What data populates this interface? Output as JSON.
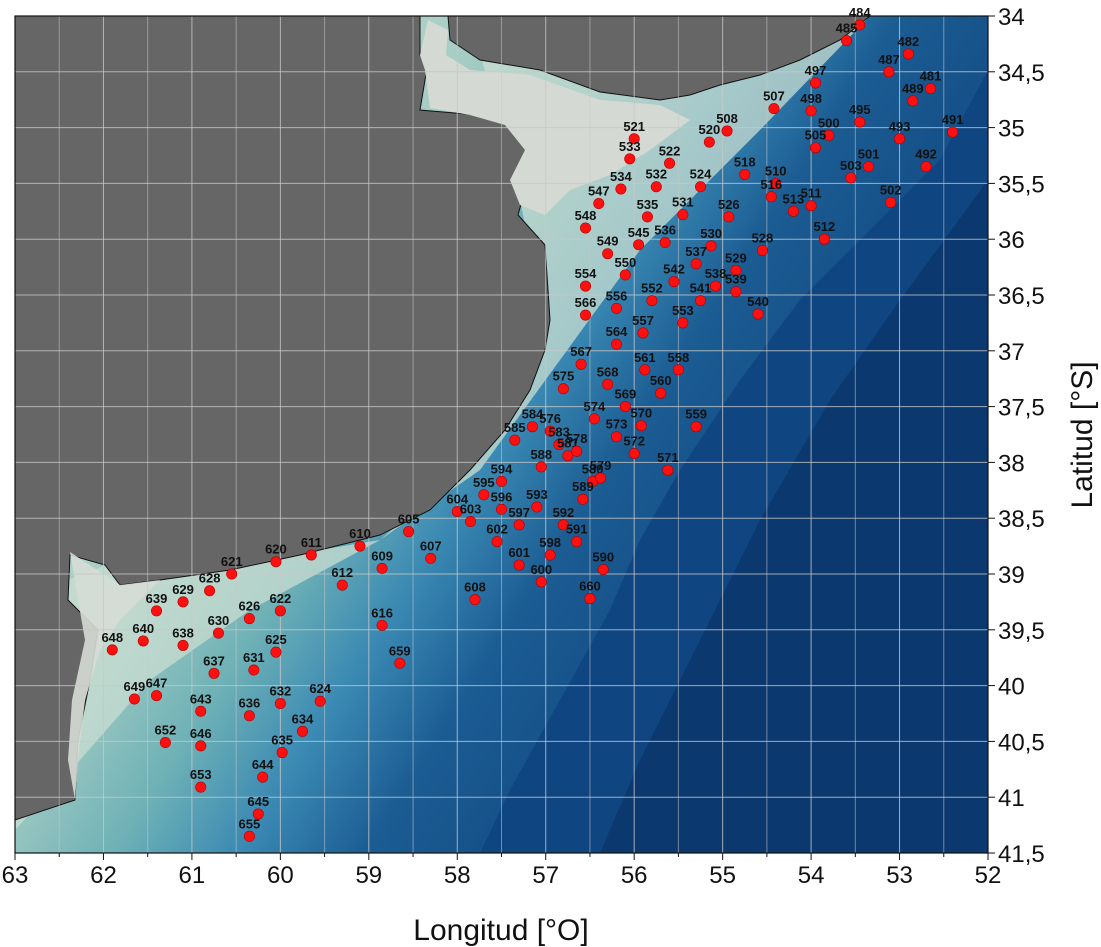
{
  "title": "",
  "x_axis": {
    "title": "Longitud [°O]",
    "ticks": [
      "63",
      "62",
      "61",
      "60",
      "59",
      "58",
      "57",
      "56",
      "55",
      "54",
      "53",
      "52"
    ],
    "range": [
      63,
      52
    ]
  },
  "y_axis": {
    "title": "Latitud [°S]",
    "ticks": [
      "34",
      "34,5",
      "35",
      "35,5",
      "36",
      "36,5",
      "37",
      "37,5",
      "38",
      "38,5",
      "39",
      "39,5",
      "40",
      "40,5",
      "41",
      "41,5"
    ],
    "range": [
      34,
      41.5
    ]
  },
  "colors": {
    "land": "#666666",
    "coast_plain": "#cfd6d2",
    "shelf_light": "#b7d5cc",
    "shelf": "#7ab6b8",
    "slope": "#2f79a8",
    "deep": "#0d3f78",
    "station": "#ff1010",
    "grid": "#c8c8c8"
  },
  "stations": [
    {
      "id": "484",
      "lon": 53.45,
      "lat": 34.08
    },
    {
      "id": "485",
      "lon": 53.6,
      "lat": 34.22
    },
    {
      "id": "482",
      "lon": 52.9,
      "lat": 34.34
    },
    {
      "id": "487",
      "lon": 53.12,
      "lat": 34.5
    },
    {
      "id": "481",
      "lon": 52.65,
      "lat": 34.65
    },
    {
      "id": "497",
      "lon": 53.95,
      "lat": 34.6
    },
    {
      "id": "489",
      "lon": 52.85,
      "lat": 34.76
    },
    {
      "id": "507",
      "lon": 54.42,
      "lat": 34.83
    },
    {
      "id": "498",
      "lon": 54.0,
      "lat": 34.85
    },
    {
      "id": "495",
      "lon": 53.45,
      "lat": 34.95
    },
    {
      "id": "491",
      "lon": 52.4,
      "lat": 35.04
    },
    {
      "id": "508",
      "lon": 54.95,
      "lat": 35.03
    },
    {
      "id": "500",
      "lon": 53.8,
      "lat": 35.07
    },
    {
      "id": "493",
      "lon": 53.0,
      "lat": 35.1
    },
    {
      "id": "521",
      "lon": 56.0,
      "lat": 35.1
    },
    {
      "id": "520",
      "lon": 55.15,
      "lat": 35.13
    },
    {
      "id": "505",
      "lon": 53.95,
      "lat": 35.18
    },
    {
      "id": "533",
      "lon": 56.05,
      "lat": 35.28
    },
    {
      "id": "522",
      "lon": 55.6,
      "lat": 35.32
    },
    {
      "id": "501",
      "lon": 53.35,
      "lat": 35.35
    },
    {
      "id": "492",
      "lon": 52.7,
      "lat": 35.35
    },
    {
      "id": "518",
      "lon": 54.75,
      "lat": 35.42
    },
    {
      "id": "503",
      "lon": 53.55,
      "lat": 35.45
    },
    {
      "id": "510",
      "lon": 54.4,
      "lat": 35.5
    },
    {
      "id": "534",
      "lon": 56.15,
      "lat": 35.55
    },
    {
      "id": "532",
      "lon": 55.75,
      "lat": 35.53
    },
    {
      "id": "524",
      "lon": 55.25,
      "lat": 35.53
    },
    {
      "id": "516",
      "lon": 54.45,
      "lat": 35.62
    },
    {
      "id": "511",
      "lon": 54.0,
      "lat": 35.7
    },
    {
      "id": "502",
      "lon": 53.1,
      "lat": 35.67
    },
    {
      "id": "547",
      "lon": 56.4,
      "lat": 35.68
    },
    {
      "id": "531",
      "lon": 55.45,
      "lat": 35.78
    },
    {
      "id": "513",
      "lon": 54.2,
      "lat": 35.75
    },
    {
      "id": "535",
      "lon": 55.85,
      "lat": 35.8
    },
    {
      "id": "526",
      "lon": 54.93,
      "lat": 35.8
    },
    {
      "id": "548",
      "lon": 56.55,
      "lat": 35.9
    },
    {
      "id": "512",
      "lon": 53.85,
      "lat": 36.0
    },
    {
      "id": "536",
      "lon": 55.65,
      "lat": 36.03
    },
    {
      "id": "545",
      "lon": 55.95,
      "lat": 36.05
    },
    {
      "id": "530",
      "lon": 55.13,
      "lat": 36.06
    },
    {
      "id": "549",
      "lon": 56.3,
      "lat": 36.13
    },
    {
      "id": "528",
      "lon": 54.55,
      "lat": 36.1
    },
    {
      "id": "537",
      "lon": 55.3,
      "lat": 36.22
    },
    {
      "id": "529",
      "lon": 54.85,
      "lat": 36.28
    },
    {
      "id": "550",
      "lon": 56.1,
      "lat": 36.32
    },
    {
      "id": "542",
      "lon": 55.55,
      "lat": 36.38
    },
    {
      "id": "554",
      "lon": 56.55,
      "lat": 36.42
    },
    {
      "id": "538",
      "lon": 55.08,
      "lat": 36.42
    },
    {
      "id": "539",
      "lon": 54.85,
      "lat": 36.47
    },
    {
      "id": "552",
      "lon": 55.8,
      "lat": 36.55
    },
    {
      "id": "541",
      "lon": 55.25,
      "lat": 36.55
    },
    {
      "id": "556",
      "lon": 56.2,
      "lat": 36.62
    },
    {
      "id": "540",
      "lon": 54.6,
      "lat": 36.67
    },
    {
      "id": "566",
      "lon": 56.55,
      "lat": 36.68
    },
    {
      "id": "553",
      "lon": 55.45,
      "lat": 36.75
    },
    {
      "id": "557",
      "lon": 55.9,
      "lat": 36.84
    },
    {
      "id": "564",
      "lon": 56.2,
      "lat": 36.94
    },
    {
      "id": "567",
      "lon": 56.6,
      "lat": 37.12
    },
    {
      "id": "561",
      "lon": 55.88,
      "lat": 37.17
    },
    {
      "id": "558",
      "lon": 55.5,
      "lat": 37.17
    },
    {
      "id": "575",
      "lon": 56.8,
      "lat": 37.34
    },
    {
      "id": "568",
      "lon": 56.3,
      "lat": 37.3
    },
    {
      "id": "560",
      "lon": 55.7,
      "lat": 37.38
    },
    {
      "id": "569",
      "lon": 56.1,
      "lat": 37.5
    },
    {
      "id": "574",
      "lon": 56.45,
      "lat": 37.61
    },
    {
      "id": "570",
      "lon": 55.92,
      "lat": 37.67
    },
    {
      "id": "559",
      "lon": 55.3,
      "lat": 37.68
    },
    {
      "id": "584",
      "lon": 57.15,
      "lat": 37.68
    },
    {
      "id": "576",
      "lon": 56.95,
      "lat": 37.72
    },
    {
      "id": "585",
      "lon": 57.35,
      "lat": 37.8
    },
    {
      "id": "573",
      "lon": 56.2,
      "lat": 37.77
    },
    {
      "id": "583",
      "lon": 56.85,
      "lat": 37.84
    },
    {
      "id": "581",
      "lon": 56.75,
      "lat": 37.94
    },
    {
      "id": "578",
      "lon": 56.65,
      "lat": 37.9
    },
    {
      "id": "572",
      "lon": 56.0,
      "lat": 37.92
    },
    {
      "id": "588",
      "lon": 57.05,
      "lat": 38.04
    },
    {
      "id": "571",
      "lon": 55.62,
      "lat": 38.07
    },
    {
      "id": "594",
      "lon": 57.5,
      "lat": 38.17
    },
    {
      "id": "580",
      "lon": 56.47,
      "lat": 38.17
    },
    {
      "id": "579",
      "lon": 56.38,
      "lat": 38.14
    },
    {
      "id": "595",
      "lon": 57.7,
      "lat": 38.29
    },
    {
      "id": "589",
      "lon": 56.58,
      "lat": 38.33
    },
    {
      "id": "604",
      "lon": 58.0,
      "lat": 38.44
    },
    {
      "id": "596",
      "lon": 57.5,
      "lat": 38.42
    },
    {
      "id": "593",
      "lon": 57.1,
      "lat": 38.4
    },
    {
      "id": "603",
      "lon": 57.85,
      "lat": 38.53
    },
    {
      "id": "597",
      "lon": 57.3,
      "lat": 38.56
    },
    {
      "id": "592",
      "lon": 56.8,
      "lat": 38.56
    },
    {
      "id": "605",
      "lon": 58.55,
      "lat": 38.62
    },
    {
      "id": "602",
      "lon": 57.55,
      "lat": 38.71
    },
    {
      "id": "591",
      "lon": 56.65,
      "lat": 38.71
    },
    {
      "id": "610",
      "lon": 59.1,
      "lat": 38.75
    },
    {
      "id": "611",
      "lon": 59.65,
      "lat": 38.83
    },
    {
      "id": "598",
      "lon": 56.95,
      "lat": 38.83
    },
    {
      "id": "607",
      "lon": 58.3,
      "lat": 38.86
    },
    {
      "id": "620",
      "lon": 60.05,
      "lat": 38.89
    },
    {
      "id": "601",
      "lon": 57.3,
      "lat": 38.92
    },
    {
      "id": "609",
      "lon": 58.85,
      "lat": 38.95
    },
    {
      "id": "590",
      "lon": 56.35,
      "lat": 38.96
    },
    {
      "id": "621",
      "lon": 60.55,
      "lat": 39.0
    },
    {
      "id": "600",
      "lon": 57.05,
      "lat": 39.07
    },
    {
      "id": "612",
      "lon": 59.3,
      "lat": 39.1
    },
    {
      "id": "628",
      "lon": 60.8,
      "lat": 39.15
    },
    {
      "id": "660",
      "lon": 56.5,
      "lat": 39.22
    },
    {
      "id": "608",
      "lon": 57.8,
      "lat": 39.23
    },
    {
      "id": "629",
      "lon": 61.1,
      "lat": 39.25
    },
    {
      "id": "639",
      "lon": 61.4,
      "lat": 39.33
    },
    {
      "id": "622",
      "lon": 60.0,
      "lat": 39.33
    },
    {
      "id": "626",
      "lon": 60.35,
      "lat": 39.4
    },
    {
      "id": "616",
      "lon": 58.85,
      "lat": 39.46
    },
    {
      "id": "630",
      "lon": 60.7,
      "lat": 39.53
    },
    {
      "id": "640",
      "lon": 61.55,
      "lat": 39.6
    },
    {
      "id": "638",
      "lon": 61.1,
      "lat": 39.64
    },
    {
      "id": "648",
      "lon": 61.9,
      "lat": 39.68
    },
    {
      "id": "625",
      "lon": 60.05,
      "lat": 39.7
    },
    {
      "id": "659",
      "lon": 58.65,
      "lat": 39.8
    },
    {
      "id": "631",
      "lon": 60.3,
      "lat": 39.86
    },
    {
      "id": "637",
      "lon": 60.75,
      "lat": 39.89
    },
    {
      "id": "647",
      "lon": 61.4,
      "lat": 40.09
    },
    {
      "id": "649",
      "lon": 61.65,
      "lat": 40.12
    },
    {
      "id": "624",
      "lon": 59.55,
      "lat": 40.14
    },
    {
      "id": "632",
      "lon": 60.0,
      "lat": 40.16
    },
    {
      "id": "643",
      "lon": 60.9,
      "lat": 40.23
    },
    {
      "id": "636",
      "lon": 60.35,
      "lat": 40.27
    },
    {
      "id": "634",
      "lon": 59.75,
      "lat": 40.41
    },
    {
      "id": "652",
      "lon": 61.3,
      "lat": 40.51
    },
    {
      "id": "646",
      "lon": 60.9,
      "lat": 40.54
    },
    {
      "id": "635",
      "lon": 59.98,
      "lat": 40.6
    },
    {
      "id": "644",
      "lon": 60.2,
      "lat": 40.82
    },
    {
      "id": "653",
      "lon": 60.9,
      "lat": 40.91
    },
    {
      "id": "645",
      "lon": 60.25,
      "lat": 41.15
    },
    {
      "id": "655",
      "lon": 60.35,
      "lat": 41.35
    }
  ]
}
